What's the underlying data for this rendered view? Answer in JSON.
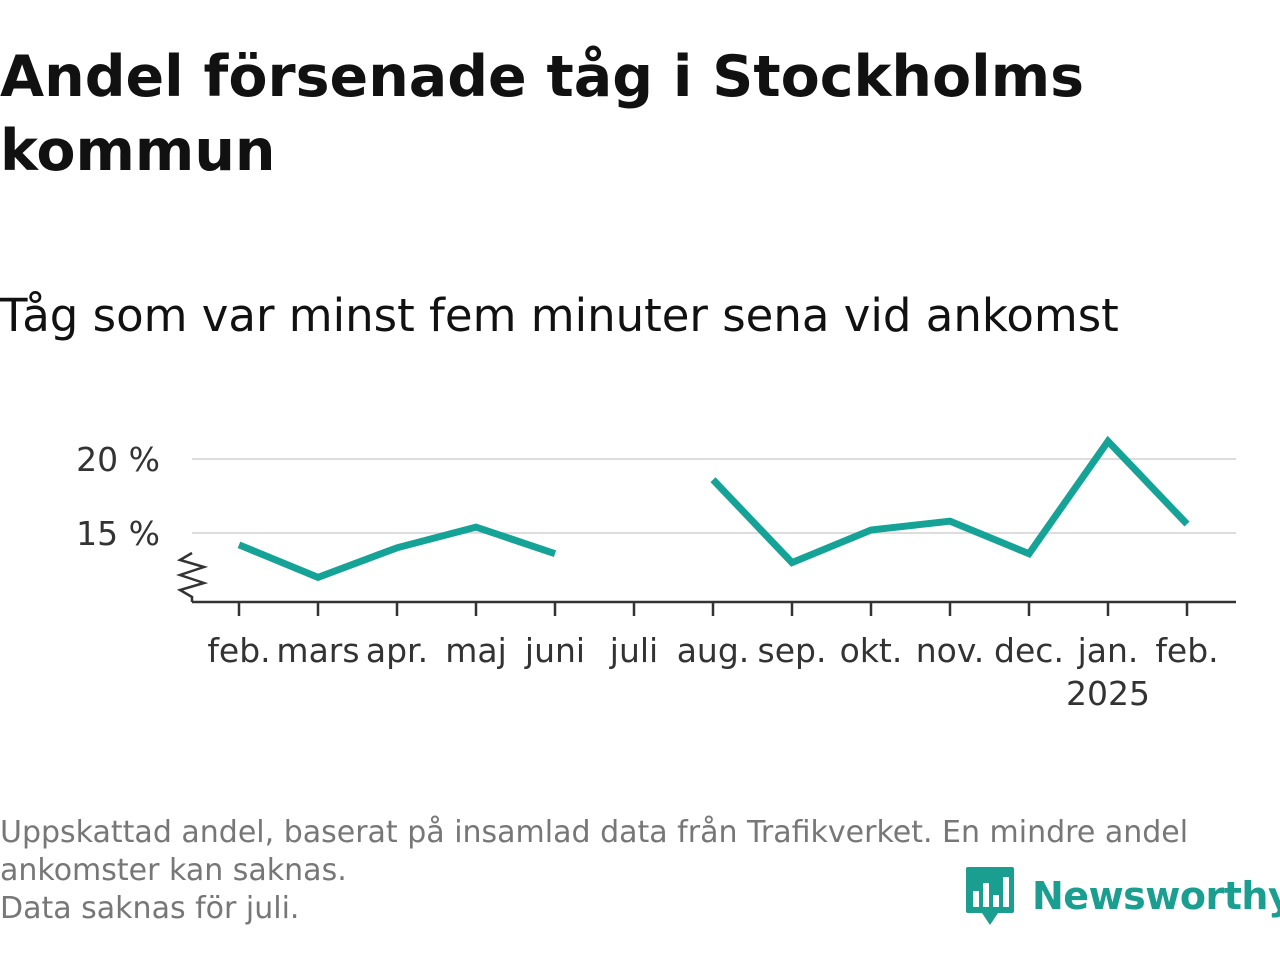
{
  "title": "Andel försenade tåg i Stockholms kommun",
  "subtitle": "Tåg som var minst fem minuter sena vid ankomst",
  "footnote": {
    "lines": [
      "Uppskattad andel, baserat på insamlad data från Trafikverket. En mindre andel",
      "ankomster kan saknas.",
      "Data saknas för juli."
    ]
  },
  "brand": {
    "name": "Newsworthy",
    "icon": "bar-chart-speech-bubble-icon",
    "color": "#1a9e8f"
  },
  "chart_data": {
    "type": "line",
    "categories": [
      "feb.",
      "mars",
      "apr.",
      "maj",
      "juni",
      "juli",
      "aug.",
      "sep.",
      "okt.",
      "nov.",
      "dec.",
      "jan.",
      "feb."
    ],
    "year_label": "2025",
    "year_label_category_index": 11,
    "series": [
      {
        "values": [
          14.2,
          12.0,
          14.0,
          15.4,
          13.6,
          null,
          18.6,
          13.0,
          15.2,
          15.8,
          13.6,
          21.2,
          15.6
        ],
        "color": "#14a396"
      }
    ],
    "yticks": [
      15,
      20
    ],
    "ytick_labels": [
      "15 %",
      "20 %"
    ],
    "ylim": [
      10.3,
      21.5
    ],
    "axis_break": true,
    "grid": true,
    "gridline_color": "#dddddd",
    "axis_color": "#333333"
  }
}
